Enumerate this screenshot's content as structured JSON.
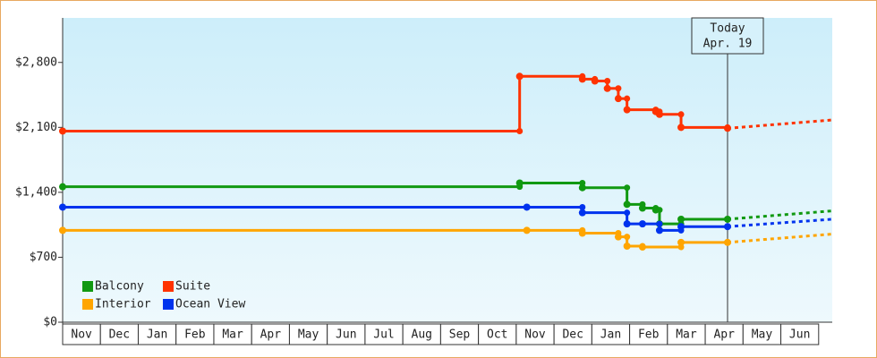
{
  "chart_data": {
    "type": "step",
    "categories": [
      "Nov",
      "Dec",
      "Jan",
      "Feb",
      "Mar",
      "Apr",
      "May",
      "Jun",
      "Jul",
      "Aug",
      "Sep",
      "Oct",
      "Nov",
      "Dec",
      "Jan",
      "Feb",
      "Mar",
      "Apr",
      "May",
      "Jun"
    ],
    "xlim": [
      0,
      20.36
    ],
    "ylim": [
      0,
      3280
    ],
    "yticks": [
      {
        "value": 0,
        "label": "$0"
      },
      {
        "value": 700,
        "label": "$700"
      },
      {
        "value": 1400,
        "label": "$1,400"
      },
      {
        "value": 2100,
        "label": "$2,100"
      },
      {
        "value": 2800,
        "label": "$2,800"
      }
    ],
    "today": {
      "x": 17.59,
      "label": "Today",
      "date": "Apr. 19"
    },
    "series": [
      {
        "name": "Balcony",
        "color": "#119911",
        "x": [
          0,
          12.09,
          13.75,
          14.93,
          15.34,
          15.69,
          15.79,
          16.36,
          17.59
        ],
        "values": [
          1460,
          1500,
          1450,
          1270,
          1230,
          1210,
          1060,
          1110,
          1110
        ],
        "forecast_x": 20.36,
        "forecast": 1200
      },
      {
        "name": "Suite",
        "color": "#ff3300",
        "x": [
          0,
          12.09,
          13.75,
          14.08,
          14.41,
          14.7,
          14.93,
          15.69,
          15.79,
          16.36,
          17.59
        ],
        "values": [
          2060,
          2650,
          2620,
          2600,
          2520,
          2410,
          2290,
          2270,
          2240,
          2100,
          2090
        ],
        "forecast_x": 20.36,
        "forecast": 2180
      },
      {
        "name": "Interior",
        "color": "#ffa500",
        "x": [
          0,
          12.28,
          13.75,
          14.7,
          14.93,
          15.34,
          16.36,
          17.59
        ],
        "values": [
          990,
          990,
          960,
          920,
          820,
          810,
          860,
          860
        ],
        "forecast_x": 20.36,
        "forecast": 950
      },
      {
        "name": "Ocean View",
        "color": "#0033ee",
        "x": [
          0,
          12.28,
          13.75,
          14.93,
          15.34,
          15.79,
          16.36,
          17.59
        ],
        "values": [
          1240,
          1240,
          1180,
          1060,
          1060,
          990,
          1030,
          1030
        ],
        "forecast_x": 20.36,
        "forecast": 1110
      }
    ]
  }
}
